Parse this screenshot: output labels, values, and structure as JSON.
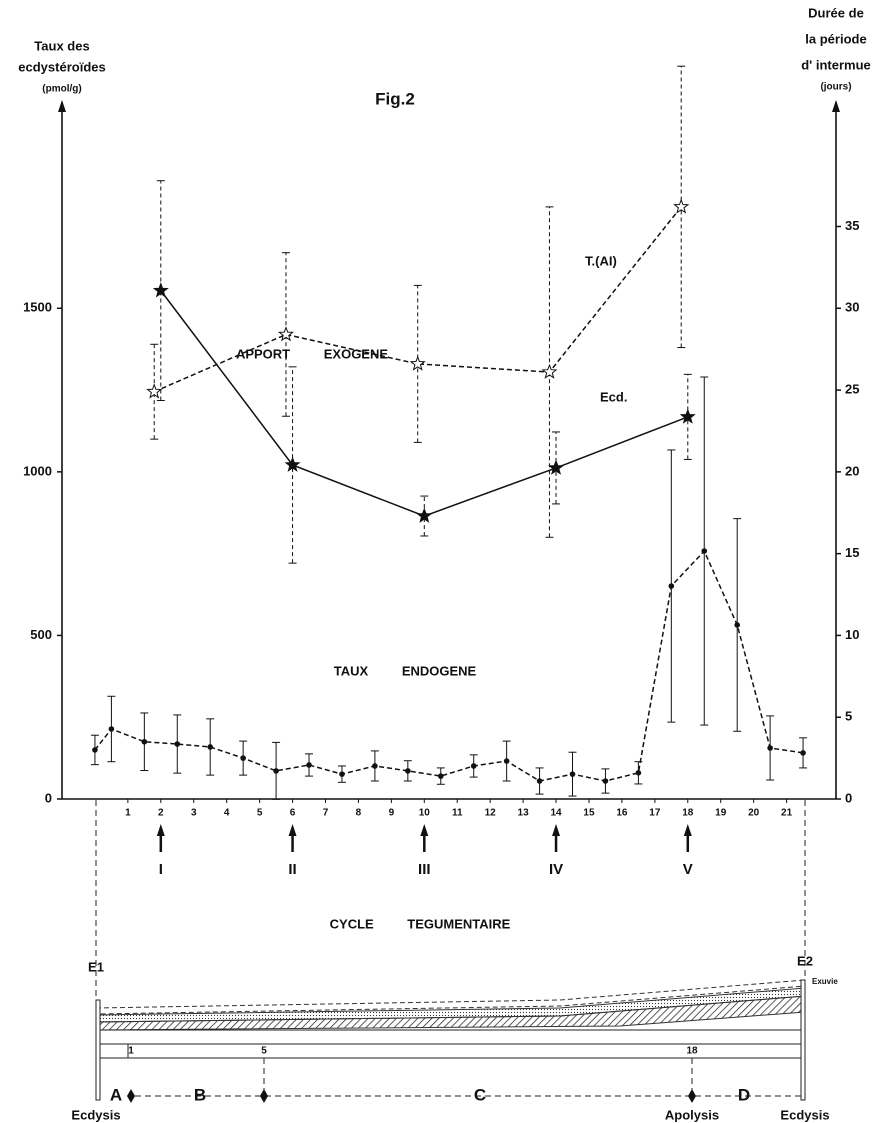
{
  "chart_data": {
    "type": "line",
    "title": "Fig.2",
    "ylabel": [
      "Taux des",
      "ecdystéroïdes"
    ],
    "yunit": "(pmol/g)",
    "y2label": [
      "Durée de",
      "la période",
      "d' intermue"
    ],
    "y2unit": "(jours)",
    "xlim": [
      -1,
      22.5
    ],
    "xticks": [
      1,
      2,
      3,
      4,
      5,
      6,
      7,
      8,
      9,
      10,
      11,
      12,
      13,
      14,
      15,
      16,
      17,
      18,
      19,
      20,
      21
    ],
    "ylim": [
      0,
      2100
    ],
    "yticks": [
      0,
      500,
      1000,
      1500
    ],
    "y2lim": [
      0,
      42
    ],
    "y2ticks": [
      0,
      5,
      10,
      15,
      20,
      25,
      30,
      35
    ],
    "series": [
      {
        "name": "TAUX ENDOGENE",
        "color": "#111",
        "marker": "dot",
        "dashed": true,
        "x": [
          0,
          0.5,
          1.5,
          2.5,
          3.5,
          4.5,
          5.5,
          6.5,
          7.5,
          8.5,
          9.5,
          10.5,
          11.5,
          12.5,
          13.5,
          14.5,
          15.5,
          16.5,
          17.5,
          18.5,
          19.5,
          20.5,
          21.5
        ],
        "values": [
          150,
          214,
          175,
          168,
          159,
          125,
          86,
          104,
          76,
          101,
          86,
          70,
          101,
          116,
          55,
          76,
          55,
          80,
          651,
          758,
          532,
          156,
          141
        ],
        "errors": [
          45,
          100,
          88,
          89,
          86,
          52,
          87,
          34,
          25,
          46,
          31,
          25,
          34,
          61,
          40,
          67,
          37,
          34,
          416,
          532,
          325,
          98,
          46
        ]
      },
      {
        "name": "Ecd.",
        "color": "#111",
        "marker": "star",
        "dashed": false,
        "x": [
          2,
          6,
          10,
          14,
          18
        ],
        "values": [
          1554,
          1021,
          865,
          1012,
          1168
        ],
        "errors": [
          336,
          300,
          61,
          110,
          130
        ]
      },
      {
        "name": "T.(AI)",
        "color": "#111",
        "marker": "open-star",
        "dashed": true,
        "axis": "y2",
        "x": [
          1.8,
          5.8,
          9.8,
          13.8,
          17.8
        ],
        "values": [
          24.9,
          28.4,
          26.6,
          26.1,
          36.2
        ],
        "errors": [
          2.9,
          5.0,
          4.8,
          10.1,
          8.6
        ]
      }
    ],
    "annotations": [
      "APPORT EXOGENE",
      "TAUX ENDOGENE"
    ],
    "arrows": [
      {
        "x": 2,
        "label": "I"
      },
      {
        "x": 6,
        "label": "II"
      },
      {
        "x": 10,
        "label": "III"
      },
      {
        "x": 14,
        "label": "IV"
      },
      {
        "x": 18,
        "label": "V"
      }
    ]
  },
  "cycle_diagram": {
    "title": "CYCLE TEGUMENTAIRE",
    "start": "E1",
    "end": "E2",
    "exuvie": "Exuvie",
    "marks": [
      "1",
      "5",
      "18"
    ],
    "phases": [
      "A",
      "B",
      "C",
      "D"
    ],
    "events": [
      "Ecdysis",
      "Apolysis",
      "Ecdysis"
    ]
  }
}
